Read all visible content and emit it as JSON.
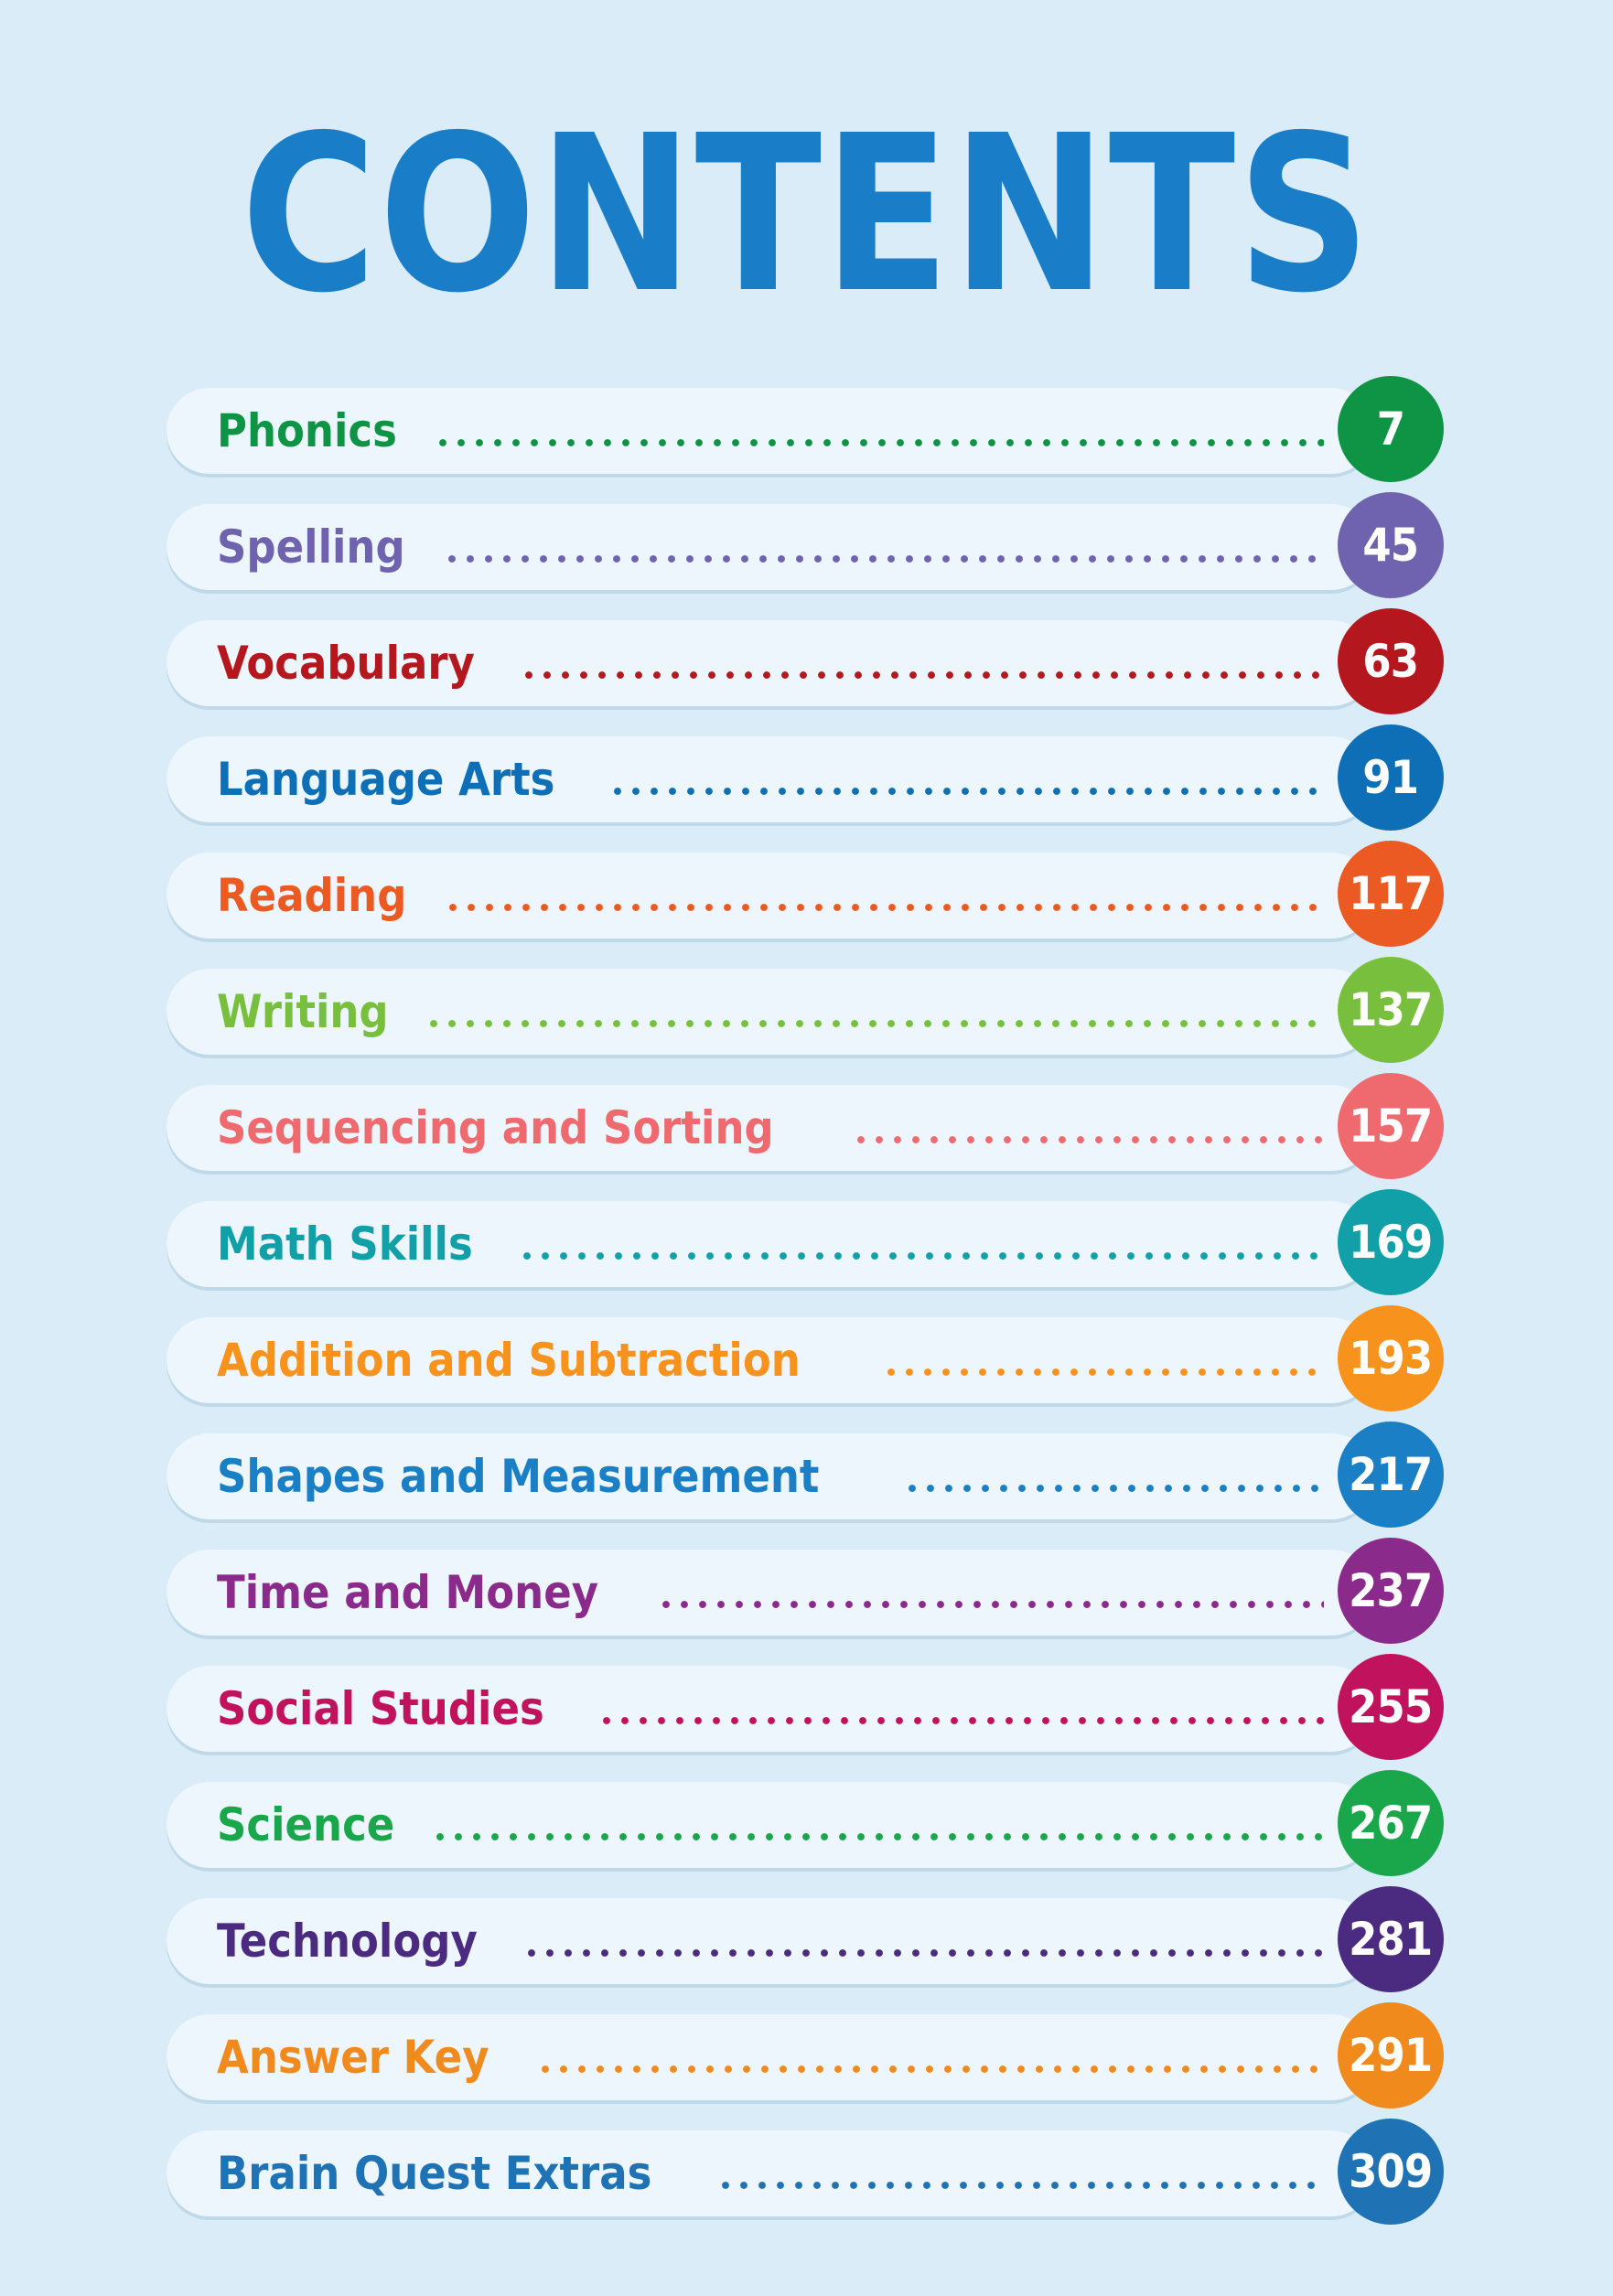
{
  "title": "CONTENTS",
  "entries": [
    {
      "label": "Phonics",
      "page": "7",
      "color": "#0f9445"
    },
    {
      "label": "Spelling",
      "page": "45",
      "color": "#6f62ae"
    },
    {
      "label": "Vocabulary",
      "page": "63",
      "color": "#b5171f"
    },
    {
      "label": "Language Arts",
      "page": "91",
      "color": "#0e6fb6"
    },
    {
      "label": "Reading",
      "page": "117",
      "color": "#ec5a24"
    },
    {
      "label": "Writing",
      "page": "137",
      "color": "#79bf3e"
    },
    {
      "label": "Sequencing and Sorting",
      "page": "157",
      "color": "#ef6a6f"
    },
    {
      "label": "Math Skills",
      "page": "169",
      "color": "#11a0a8"
    },
    {
      "label": "Addition and Subtraction",
      "page": "193",
      "color": "#f7931d"
    },
    {
      "label": "Shapes and Measurement",
      "page": "217",
      "color": "#1a7fc4"
    },
    {
      "label": "Time and Money",
      "page": "237",
      "color": "#8a2a8b"
    },
    {
      "label": "Social Studies",
      "page": "255",
      "color": "#c1135d"
    },
    {
      "label": "Science",
      "page": "267",
      "color": "#1aa64b"
    },
    {
      "label": "Technology",
      "page": "281",
      "color": "#4b2b7f"
    },
    {
      "label": "Answer Key",
      "page": "291",
      "color": "#f08a1d"
    },
    {
      "label": "Brain Quest Extras",
      "page": "309",
      "color": "#1f73b4"
    }
  ]
}
